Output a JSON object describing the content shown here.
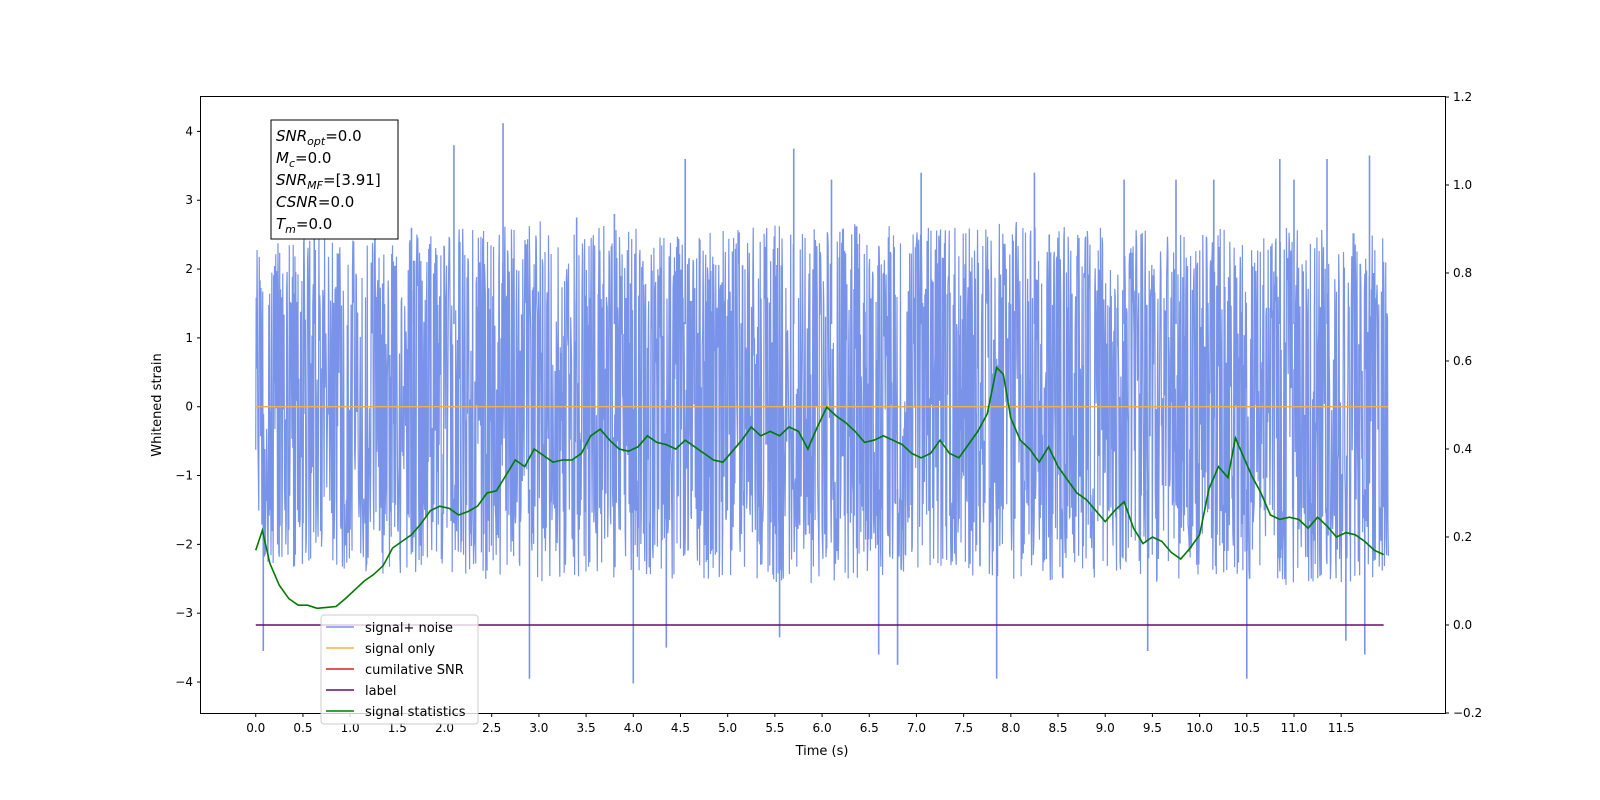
{
  "chart_data": {
    "type": "line",
    "title": "",
    "xlabel": "Time (s)",
    "ylabel": "Whitened strain",
    "y2label": "",
    "xlim": [
      -0.58,
      12.6
    ],
    "ylim": [
      -4.45,
      4.5
    ],
    "y2lim": [
      -0.2,
      1.2
    ],
    "x_ticks": [
      "0.0",
      "0.5",
      "1.0",
      "1.5",
      "2.0",
      "2.5",
      "3.0",
      "3.5",
      "4.0",
      "4.5",
      "5.0",
      "5.5",
      "6.0",
      "6.5",
      "7.0",
      "7.5",
      "8.0",
      "8.5",
      "9.0",
      "9.5",
      "10.0",
      "10.5",
      "11.0",
      "11.5"
    ],
    "y_ticks": [
      "−4",
      "−3",
      "−2",
      "−1",
      "0",
      "1",
      "2",
      "3",
      "4"
    ],
    "y2_ticks": [
      "−0.2",
      "0.0",
      "0.2",
      "0.4",
      "0.6",
      "0.8",
      "1.0",
      "1.2"
    ],
    "grid": false,
    "legend_position": "lower-left",
    "annotation_lines": [
      {
        "base": "SNR",
        "sub": "opt",
        "value": "=0.0"
      },
      {
        "base": "M",
        "sub": "c",
        "value": "=0.0"
      },
      {
        "base": "SNR",
        "sub": "MF",
        "value": "=[3.91]"
      },
      {
        "base": "CSNR",
        "sub": "",
        "value": "=0.0"
      },
      {
        "base": "T",
        "sub": "m",
        "value": "=0.0"
      }
    ],
    "series": [
      {
        "name": "signal+ noise",
        "color": "#7893e8",
        "axis": "left",
        "kind": "noise",
        "x_range": [
          0.0,
          12.0
        ],
        "typical_band": [
          -1.6,
          1.6
        ],
        "envelope": {
          "x": [
            0.0,
            1.0,
            2.0,
            3.0,
            4.0,
            5.0,
            6.0,
            7.0,
            8.0,
            9.0,
            10.0,
            11.0,
            12.0
          ],
          "upper": [
            2.4,
            2.6,
            2.6,
            2.7,
            2.6,
            2.6,
            2.7,
            2.6,
            2.7,
            2.6,
            2.6,
            2.6,
            2.5
          ],
          "lower": [
            -2.3,
            -2.4,
            -2.5,
            -2.6,
            -2.5,
            -2.5,
            -2.6,
            -2.4,
            -2.5,
            -2.6,
            -2.5,
            -2.6,
            -2.5
          ]
        },
        "spikes": [
          {
            "x": 0.08,
            "y": -3.55
          },
          {
            "x": 0.62,
            "y": 2.9
          },
          {
            "x": 1.65,
            "y": 2.6
          },
          {
            "x": 2.1,
            "y": 3.8
          },
          {
            "x": 2.62,
            "y": 4.12
          },
          {
            "x": 2.9,
            "y": -3.95
          },
          {
            "x": 3.4,
            "y": 2.75
          },
          {
            "x": 3.8,
            "y": 2.8
          },
          {
            "x": 4.0,
            "y": -4.02
          },
          {
            "x": 4.35,
            "y": -3.5
          },
          {
            "x": 4.55,
            "y": 3.6
          },
          {
            "x": 5.55,
            "y": -3.35
          },
          {
            "x": 5.7,
            "y": 3.75
          },
          {
            "x": 6.1,
            "y": 3.3
          },
          {
            "x": 6.6,
            "y": -3.6
          },
          {
            "x": 6.8,
            "y": -3.75
          },
          {
            "x": 7.05,
            "y": 3.4
          },
          {
            "x": 7.85,
            "y": -3.95
          },
          {
            "x": 8.25,
            "y": 3.4
          },
          {
            "x": 9.2,
            "y": 3.3
          },
          {
            "x": 9.75,
            "y": 3.3
          },
          {
            "x": 10.15,
            "y": 3.3
          },
          {
            "x": 10.5,
            "y": -3.95
          },
          {
            "x": 10.85,
            "y": 3.6
          },
          {
            "x": 11.0,
            "y": 3.3
          },
          {
            "x": 11.35,
            "y": 3.6
          },
          {
            "x": 11.55,
            "y": -3.4
          },
          {
            "x": 11.8,
            "y": 3.65
          },
          {
            "x": 11.75,
            "y": -3.6
          },
          {
            "x": 9.45,
            "y": -3.55
          }
        ]
      },
      {
        "name": "signal only",
        "color": "#f5b041",
        "axis": "left",
        "x": [
          0.0,
          12.0
        ],
        "y": [
          0.0,
          0.0
        ]
      },
      {
        "name": "cumilative SNR",
        "color": "#e41a1c",
        "axis": "right",
        "x": [],
        "y": []
      },
      {
        "name": "label",
        "color": "#6a0a6a",
        "axis": "right",
        "x": [
          0.0,
          11.95
        ],
        "y": [
          0.0,
          0.0
        ]
      },
      {
        "name": "signal statistics",
        "color": "#007a00",
        "axis": "right",
        "x": [
          0.0,
          0.07,
          0.15,
          0.25,
          0.35,
          0.45,
          0.55,
          0.65,
          0.75,
          0.85,
          0.95,
          1.05,
          1.15,
          1.25,
          1.35,
          1.45,
          1.55,
          1.65,
          1.75,
          1.85,
          1.95,
          2.05,
          2.15,
          2.25,
          2.35,
          2.45,
          2.55,
          2.65,
          2.75,
          2.85,
          2.95,
          3.05,
          3.15,
          3.25,
          3.35,
          3.45,
          3.55,
          3.65,
          3.75,
          3.85,
          3.95,
          4.05,
          4.15,
          4.25,
          4.35,
          4.45,
          4.55,
          4.65,
          4.75,
          4.85,
          4.95,
          5.05,
          5.15,
          5.25,
          5.35,
          5.45,
          5.55,
          5.65,
          5.75,
          5.85,
          5.95,
          6.05,
          6.15,
          6.25,
          6.35,
          6.45,
          6.55,
          6.65,
          6.75,
          6.85,
          6.95,
          7.05,
          7.15,
          7.25,
          7.35,
          7.45,
          7.55,
          7.65,
          7.75,
          7.85,
          7.92,
          8.0,
          8.1,
          8.2,
          8.3,
          8.4,
          8.5,
          8.6,
          8.7,
          8.8,
          8.9,
          9.0,
          9.1,
          9.2,
          9.3,
          9.4,
          9.5,
          9.6,
          9.7,
          9.8,
          9.9,
          10.0,
          10.1,
          10.2,
          10.3,
          10.38,
          10.45,
          10.55,
          10.65,
          10.75,
          10.85,
          10.95,
          11.05,
          11.15,
          11.25,
          11.35,
          11.45,
          11.55,
          11.65,
          11.75,
          11.85,
          11.95
        ],
        "y": [
          0.17,
          0.215,
          0.14,
          0.09,
          0.06,
          0.045,
          0.045,
          0.038,
          0.04,
          0.042,
          0.06,
          0.08,
          0.1,
          0.115,
          0.135,
          0.175,
          0.19,
          0.205,
          0.23,
          0.26,
          0.27,
          0.265,
          0.25,
          0.258,
          0.27,
          0.3,
          0.305,
          0.34,
          0.375,
          0.36,
          0.4,
          0.385,
          0.37,
          0.375,
          0.375,
          0.39,
          0.43,
          0.445,
          0.42,
          0.4,
          0.395,
          0.405,
          0.43,
          0.415,
          0.41,
          0.4,
          0.42,
          0.405,
          0.39,
          0.375,
          0.37,
          0.395,
          0.42,
          0.45,
          0.43,
          0.44,
          0.43,
          0.45,
          0.44,
          0.4,
          0.45,
          0.495,
          0.475,
          0.46,
          0.44,
          0.415,
          0.42,
          0.43,
          0.42,
          0.41,
          0.39,
          0.38,
          0.39,
          0.42,
          0.39,
          0.38,
          0.41,
          0.44,
          0.48,
          0.585,
          0.57,
          0.47,
          0.42,
          0.4,
          0.37,
          0.405,
          0.36,
          0.33,
          0.3,
          0.285,
          0.26,
          0.235,
          0.26,
          0.28,
          0.22,
          0.185,
          0.2,
          0.19,
          0.165,
          0.15,
          0.175,
          0.205,
          0.31,
          0.36,
          0.335,
          0.425,
          0.39,
          0.34,
          0.3,
          0.25,
          0.24,
          0.245,
          0.24,
          0.22,
          0.245,
          0.225,
          0.2,
          0.21,
          0.205,
          0.19,
          0.17,
          0.16
        ]
      }
    ]
  }
}
